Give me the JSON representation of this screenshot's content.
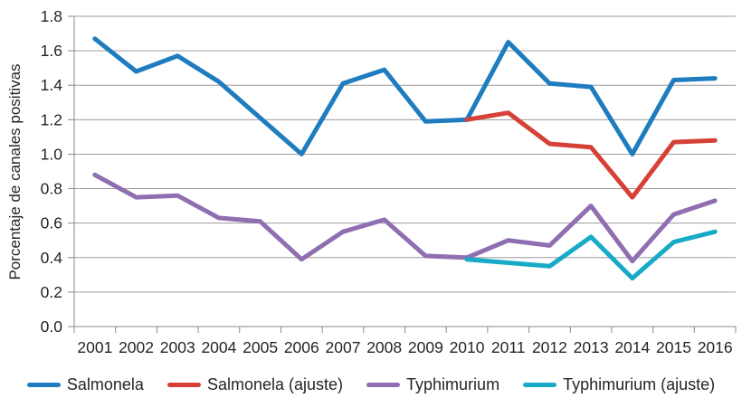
{
  "chart_data": {
    "type": "line",
    "title": "",
    "xlabel": "",
    "ylabel": "Porcentaje de canales positivas",
    "ylim": [
      0.0,
      1.8
    ],
    "ytick_step": 0.2,
    "yticks": [
      "0.0",
      "0.2",
      "0.4",
      "0.6",
      "0.8",
      "1.0",
      "1.2",
      "1.4",
      "1.6",
      "1.8"
    ],
    "grid": "horizontal",
    "legend_position": "bottom",
    "x": [
      "2001",
      "2002",
      "2003",
      "2004",
      "2005",
      "2006",
      "2007",
      "2008",
      "2009",
      "2010",
      "2011",
      "2012",
      "2013",
      "2014",
      "2015",
      "2016"
    ],
    "series": [
      {
        "name": "Salmonela",
        "color": "#1E7CBF",
        "values": [
          1.67,
          1.48,
          1.57,
          1.42,
          1.21,
          1.0,
          1.41,
          1.49,
          1.19,
          1.2,
          1.65,
          1.41,
          1.39,
          1.0,
          1.43,
          1.44
        ]
      },
      {
        "name": "Salmonela (ajuste)",
        "color": "#D64036",
        "values": [
          null,
          null,
          null,
          null,
          null,
          null,
          null,
          null,
          null,
          1.2,
          1.24,
          1.06,
          1.04,
          0.75,
          1.07,
          1.08
        ]
      },
      {
        "name": "Typhimurium",
        "color": "#8F6FB1",
        "values": [
          0.88,
          0.75,
          0.76,
          0.63,
          0.61,
          0.39,
          0.55,
          0.62,
          0.41,
          0.4,
          0.5,
          0.47,
          0.7,
          0.38,
          0.65,
          0.73
        ]
      },
      {
        "name": "Typhimurium (ajuste)",
        "color": "#17ABC7",
        "values": [
          null,
          null,
          null,
          null,
          null,
          null,
          null,
          null,
          null,
          0.39,
          0.37,
          0.35,
          0.52,
          0.28,
          0.49,
          0.55
        ]
      }
    ],
    "style": {
      "grid_color": "#9C9C9C",
      "axis_color": "#8A8A8A",
      "text_color": "#252525",
      "background": "#FFFFFF",
      "line_width": 5
    }
  }
}
